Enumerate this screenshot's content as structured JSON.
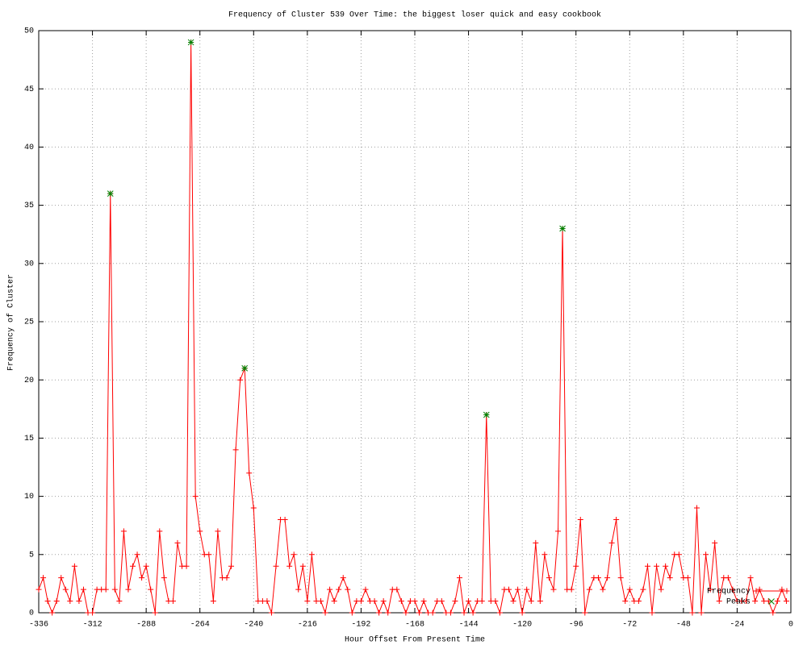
{
  "chart_data": {
    "type": "line",
    "title": "Frequency of Cluster 539 Over Time: the biggest loser quick and easy cookbook",
    "x_label": "Hour Offset From Present Time",
    "y_label": "Frequency of Cluster",
    "xlim": [
      -336,
      0
    ],
    "ylim": [
      0,
      50
    ],
    "xticks": [
      -336,
      -312,
      -288,
      -264,
      -240,
      -216,
      -192,
      -168,
      -144,
      -120,
      -96,
      -72,
      -48,
      -24,
      0
    ],
    "yticks": [
      0,
      5,
      10,
      15,
      20,
      25,
      30,
      35,
      40,
      45,
      50
    ],
    "grid": true,
    "legend": "bottom right",
    "series": [
      {
        "name": "Frequency",
        "color": "#ff0000",
        "style": "linespoints",
        "marker": "plus",
        "x": [
          -336,
          -334,
          -332,
          -330,
          -328,
          -326,
          -324,
          -322,
          -320,
          -318,
          -316,
          -314,
          -312,
          -310,
          -308,
          -306,
          -304,
          -302,
          -300,
          -298,
          -296,
          -294,
          -292,
          -290,
          -288,
          -286,
          -284,
          -282,
          -280,
          -278,
          -276,
          -274,
          -272,
          -270,
          -268,
          -266,
          -264,
          -262,
          -260,
          -258,
          -256,
          -254,
          -252,
          -250,
          -248,
          -246,
          -244,
          -242,
          -240,
          -238,
          -236,
          -234,
          -232,
          -230,
          -228,
          -226,
          -224,
          -222,
          -220,
          -218,
          -216,
          -214,
          -212,
          -210,
          -208,
          -206,
          -204,
          -202,
          -200,
          -198,
          -196,
          -194,
          -192,
          -190,
          -188,
          -186,
          -184,
          -182,
          -180,
          -178,
          -176,
          -174,
          -172,
          -170,
          -168,
          -166,
          -164,
          -162,
          -160,
          -158,
          -156,
          -154,
          -152,
          -150,
          -148,
          -146,
          -144,
          -142,
          -140,
          -138,
          -136,
          -134,
          -132,
          -130,
          -128,
          -126,
          -124,
          -122,
          -120,
          -118,
          -116,
          -114,
          -112,
          -110,
          -108,
          -106,
          -104,
          -102,
          -100,
          -98,
          -96,
          -94,
          -92,
          -90,
          -88,
          -86,
          -84,
          -82,
          -80,
          -78,
          -76,
          -74,
          -72,
          -70,
          -68,
          -66,
          -64,
          -62,
          -60,
          -58,
          -56,
          -54,
          -52,
          -50,
          -48,
          -46,
          -44,
          -42,
          -40,
          -38,
          -36,
          -34,
          -32,
          -30,
          -28,
          -26,
          -24,
          -22,
          -20,
          -18,
          -16,
          -14,
          -12,
          -10,
          -8,
          -6,
          -4,
          -2
        ],
        "values": [
          2,
          3,
          1,
          0,
          1,
          3,
          2,
          1,
          4,
          1,
          2,
          0,
          0,
          2,
          2,
          2,
          36,
          2,
          1,
          7,
          2,
          4,
          5,
          3,
          4,
          2,
          0,
          7,
          3,
          1,
          1,
          6,
          4,
          4,
          49,
          10,
          7,
          5,
          5,
          1,
          7,
          3,
          3,
          4,
          14,
          20,
          21,
          12,
          9,
          1,
          1,
          1,
          0,
          4,
          8,
          8,
          4,
          5,
          2,
          4,
          1,
          5,
          1,
          1,
          0,
          2,
          1,
          2,
          3,
          2,
          0,
          1,
          1,
          2,
          1,
          1,
          0,
          1,
          0,
          2,
          2,
          1,
          0,
          1,
          1,
          0,
          1,
          0,
          0,
          1,
          1,
          0,
          0,
          1,
          3,
          0,
          1,
          0,
          1,
          1,
          17,
          1,
          1,
          0,
          2,
          2,
          1,
          2,
          0,
          2,
          1,
          6,
          1,
          5,
          3,
          2,
          7,
          33,
          2,
          2,
          4,
          8,
          0,
          2,
          3,
          3,
          2,
          3,
          6,
          8,
          3,
          1,
          2,
          1,
          1,
          2,
          4,
          0,
          4,
          2,
          4,
          3,
          5,
          5,
          3,
          3,
          0,
          9,
          0,
          5,
          2,
          6,
          1,
          3,
          3,
          2,
          1,
          1,
          1,
          3,
          1,
          2,
          1,
          1,
          0,
          1,
          2,
          1
        ]
      },
      {
        "name": "Peaks",
        "color": "#008000",
        "style": "points",
        "marker": "star",
        "x": [
          -304,
          -268,
          -244,
          -136,
          -102
        ],
        "values": [
          36,
          49,
          21,
          17,
          33
        ]
      }
    ]
  }
}
